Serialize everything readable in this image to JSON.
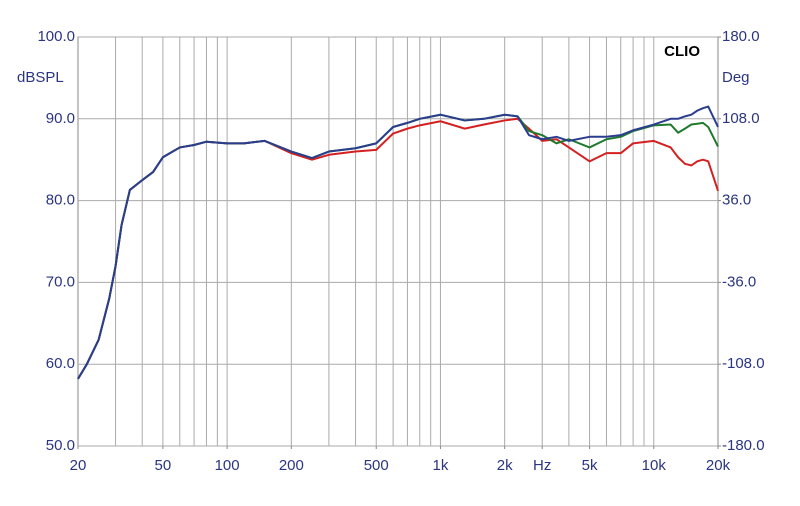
{
  "chart_data": {
    "type": "line",
    "title": "CLIO",
    "ylabel": "dBSPL",
    "y2label": "Deg",
    "xscale": "log",
    "grid": true,
    "xlim": [
      20,
      20000
    ],
    "ylim": [
      50,
      100
    ],
    "y2lim": [
      -180,
      180
    ],
    "xticks": [
      20,
      50,
      100,
      200,
      500,
      {
        "value": 1000,
        "label": "1k"
      },
      {
        "value": 2000,
        "label": "2k"
      },
      {
        "value": 3000,
        "label": "Hz"
      },
      {
        "value": 5000,
        "label": "5k"
      },
      {
        "value": 10000,
        "label": "10k"
      },
      {
        "value": 20000,
        "label": "20k"
      }
    ],
    "yticks": [
      {
        "value": 50,
        "label": "50.0"
      },
      {
        "value": 60,
        "label": "60.0"
      },
      {
        "value": 70,
        "label": "70.0"
      },
      {
        "value": 80,
        "label": "80.0"
      },
      {
        "value": 90,
        "label": "90.0"
      },
      {
        "value": 100,
        "label": "100.0"
      }
    ],
    "y2ticks": [
      {
        "value": -180,
        "label": "-180.0"
      },
      {
        "value": -108,
        "label": "-108.0"
      },
      {
        "value": -36,
        "label": "-36.0"
      },
      {
        "value": 36,
        "label": "36.0"
      },
      {
        "value": 108,
        "label": "108.0"
      },
      {
        "value": 180,
        "label": "180.0"
      }
    ],
    "x": [
      20,
      22,
      25,
      28,
      30,
      32,
      35,
      40,
      45,
      50,
      60,
      70,
      80,
      100,
      120,
      150,
      200,
      250,
      300,
      400,
      500,
      600,
      700,
      800,
      1000,
      1300,
      1600,
      2000,
      2300,
      2600,
      3000,
      3500,
      4000,
      5000,
      6000,
      7000,
      8000,
      10000,
      12000,
      13000,
      14000,
      15000,
      16000,
      17000,
      18000,
      20000
    ],
    "series": [
      {
        "color": "#d42020",
        "values": [
          58.2,
          60,
          63,
          68,
          72,
          77,
          81.3,
          82.5,
          83.5,
          85.3,
          86.5,
          86.8,
          87.2,
          87,
          87,
          87.3,
          85.8,
          85,
          85.6,
          86,
          86.2,
          88.2,
          88.8,
          89.2,
          89.7,
          88.8,
          89.3,
          89.8,
          90,
          88.8,
          87.3,
          87.5,
          86.5,
          84.8,
          85.8,
          85.8,
          87,
          87.3,
          86.5,
          85.3,
          84.5,
          84.3,
          84.8,
          85,
          84.8,
          81.2
        ]
      },
      {
        "color": "#1f7a2e",
        "values": [
          58.2,
          60,
          63,
          68,
          72,
          77,
          81.3,
          82.5,
          83.5,
          85.3,
          86.5,
          86.8,
          87.2,
          87,
          87,
          87.3,
          86,
          85.2,
          86,
          86.4,
          87,
          89,
          89.5,
          90,
          90.5,
          89.8,
          90,
          90.5,
          90.3,
          88.5,
          88,
          87,
          87.5,
          86.5,
          87.5,
          87.8,
          88.5,
          89.2,
          89.3,
          88.3,
          88.8,
          89.3,
          89.4,
          89.5,
          89,
          86.6
        ]
      },
      {
        "color": "#2b3d8f",
        "values": [
          58.2,
          60,
          63,
          68,
          72,
          77,
          81.3,
          82.5,
          83.5,
          85.3,
          86.5,
          86.8,
          87.2,
          87,
          87,
          87.3,
          86,
          85.2,
          86,
          86.4,
          87,
          89,
          89.5,
          90,
          90.5,
          89.8,
          90,
          90.5,
          90.3,
          88,
          87.5,
          87.8,
          87.3,
          87.8,
          87.8,
          88,
          88.6,
          89.3,
          90,
          90,
          90.3,
          90.5,
          91,
          91.3,
          91.5,
          89
        ]
      }
    ]
  }
}
